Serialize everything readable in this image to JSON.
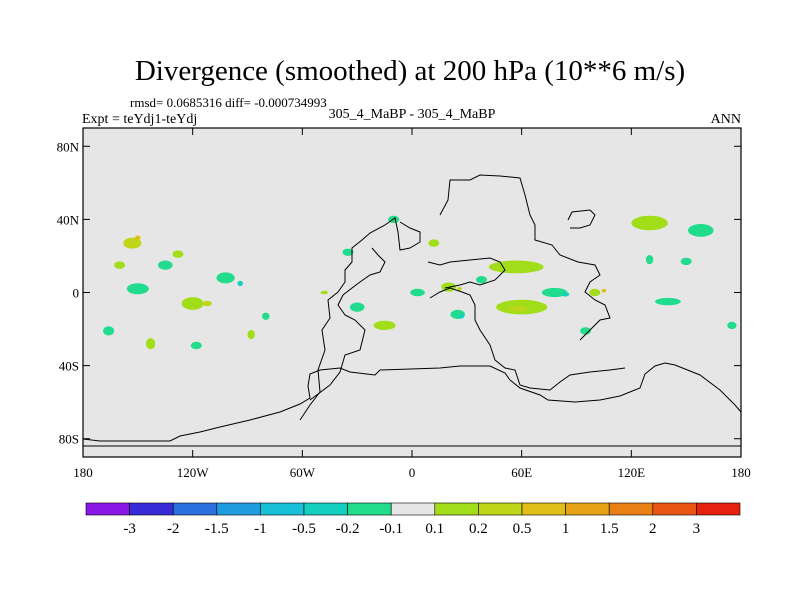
{
  "chart_data": {
    "type": "heatmap",
    "title": "Divergence (smoothed) at 200 hPa (10**6 m/s)",
    "stats_text": "rmsd= 0.0685316 diff= -0.000734993",
    "left_label": "Expt = teYdj1-teYdj",
    "center_label": "305_4_MaBP - 305_4_MaBP",
    "right_label": "ANN",
    "x_ticks": [
      {
        "lon": -180,
        "label": "180"
      },
      {
        "lon": -120,
        "label": "120W"
      },
      {
        "lon": -60,
        "label": "60W"
      },
      {
        "lon": 0,
        "label": "0"
      },
      {
        "lon": 60,
        "label": "60E"
      },
      {
        "lon": 120,
        "label": "120E"
      },
      {
        "lon": 180,
        "label": "180"
      }
    ],
    "y_ticks": [
      {
        "lat": 80,
        "label": "80N"
      },
      {
        "lat": 40,
        "label": "40N"
      },
      {
        "lat": 0,
        "label": "0"
      },
      {
        "lat": -40,
        "label": "40S"
      },
      {
        "lat": -80,
        "label": "80S"
      }
    ],
    "xlim": [
      -180,
      180
    ],
    "ylim": [
      -90,
      90
    ],
    "colorbar": {
      "colors": [
        "#8a17e6",
        "#3a2bd9",
        "#2b6fde",
        "#1d9ce0",
        "#17bfd9",
        "#14cfbf",
        "#20dc8c",
        "#e6e6e6",
        "#a2dd1a",
        "#bfd618",
        "#dfbf17",
        "#e7a316",
        "#ea7f14",
        "#e85512",
        "#e4220f"
      ],
      "labels": [
        "-3",
        "-2",
        "-1.5",
        "-1",
        "-0.5",
        "-0.2",
        "-0.1",
        "0.1",
        "0.2",
        "0.5",
        "1",
        "1.5",
        "2",
        "3"
      ]
    },
    "anomalies": [
      {
        "lon": -153,
        "lat": 27,
        "rx": 5,
        "ry": 3,
        "level": "0.2"
      },
      {
        "lon": -150,
        "lat": 30,
        "rx": 1.5,
        "ry": 1.2,
        "level": "0.5"
      },
      {
        "lon": -160,
        "lat": 15,
        "rx": 3,
        "ry": 2,
        "level": "0.1"
      },
      {
        "lon": -135,
        "lat": 15,
        "rx": 4,
        "ry": 2.5,
        "level": "-0.1"
      },
      {
        "lon": -128,
        "lat": 21,
        "rx": 3,
        "ry": 2,
        "level": "0.1"
      },
      {
        "lon": -102,
        "lat": 8,
        "rx": 5,
        "ry": 3,
        "level": "-0.1"
      },
      {
        "lon": -94,
        "lat": 5,
        "rx": 1.5,
        "ry": 1.5,
        "level": "-0.2"
      },
      {
        "lon": -150,
        "lat": 2,
        "rx": 6,
        "ry": 3,
        "level": "-0.1"
      },
      {
        "lon": -120,
        "lat": -6,
        "rx": 6,
        "ry": 3.5,
        "level": "0.1"
      },
      {
        "lon": -112,
        "lat": -6,
        "rx": 2.5,
        "ry": 1.5,
        "level": "0.2"
      },
      {
        "lon": -166,
        "lat": -21,
        "rx": 3,
        "ry": 2.5,
        "level": "-0.1"
      },
      {
        "lon": -143,
        "lat": -28,
        "rx": 2.5,
        "ry": 3,
        "level": "0.1"
      },
      {
        "lon": -118,
        "lat": -29,
        "rx": 3,
        "ry": 2,
        "level": "-0.1"
      },
      {
        "lon": -88,
        "lat": -23,
        "rx": 2,
        "ry": 2.5,
        "level": "0.1"
      },
      {
        "lon": -80,
        "lat": -13,
        "rx": 2,
        "ry": 2,
        "level": "-0.1"
      },
      {
        "lon": -35,
        "lat": 22,
        "rx": 3,
        "ry": 2,
        "level": "-0.1"
      },
      {
        "lon": -48,
        "lat": 0,
        "rx": 2,
        "ry": 1,
        "level": "0.1"
      },
      {
        "lon": -10,
        "lat": 40,
        "rx": 3,
        "ry": 2,
        "level": "-0.1"
      },
      {
        "lon": 12,
        "lat": 27,
        "rx": 3,
        "ry": 2,
        "level": "0.1"
      },
      {
        "lon": -30,
        "lat": -8,
        "rx": 4,
        "ry": 2.5,
        "level": "-0.1"
      },
      {
        "lon": -15,
        "lat": -18,
        "rx": 6,
        "ry": 2.5,
        "level": "0.1"
      },
      {
        "lon": 3,
        "lat": 0,
        "rx": 4,
        "ry": 2,
        "level": "-0.1"
      },
      {
        "lon": 20,
        "lat": 3,
        "rx": 4,
        "ry": 2.5,
        "level": "0.1"
      },
      {
        "lon": 26,
        "lat": 2,
        "rx": 1.2,
        "ry": 1,
        "level": "0.2"
      },
      {
        "lon": 38,
        "lat": 7,
        "rx": 3,
        "ry": 2,
        "level": "-0.1"
      },
      {
        "lon": 25,
        "lat": -12,
        "rx": 4,
        "ry": 2.5,
        "level": "-0.1"
      },
      {
        "lon": 27,
        "lat": -13,
        "rx": 1.5,
        "ry": 1.2,
        "level": "-0.2"
      },
      {
        "lon": 60,
        "lat": -8,
        "rx": 14,
        "ry": 4,
        "level": "0.1"
      },
      {
        "lon": 58,
        "lat": -9,
        "rx": 5,
        "ry": 1.5,
        "level": "0.2"
      },
      {
        "lon": 57,
        "lat": 14,
        "rx": 15,
        "ry": 3.5,
        "level": "0.1"
      },
      {
        "lon": 78,
        "lat": 0,
        "rx": 7,
        "ry": 2.5,
        "level": "-0.1"
      },
      {
        "lon": 84,
        "lat": -1,
        "rx": 2,
        "ry": 1.2,
        "level": "-0.2"
      },
      {
        "lon": 100,
        "lat": 0,
        "rx": 3,
        "ry": 2,
        "level": "0.1"
      },
      {
        "lon": 105,
        "lat": 1,
        "rx": 1.2,
        "ry": 1,
        "level": "0.5"
      },
      {
        "lon": 95,
        "lat": -21,
        "rx": 3,
        "ry": 2,
        "level": "-0.1"
      },
      {
        "lon": 130,
        "lat": 38,
        "rx": 10,
        "ry": 4,
        "level": "0.1"
      },
      {
        "lon": 158,
        "lat": 34,
        "rx": 7,
        "ry": 3.5,
        "level": "-0.1"
      },
      {
        "lon": 130,
        "lat": 18,
        "rx": 2,
        "ry": 2.5,
        "level": "-0.1"
      },
      {
        "lon": 150,
        "lat": 17,
        "rx": 3,
        "ry": 2,
        "level": "-0.1"
      },
      {
        "lon": 140,
        "lat": -5,
        "rx": 7,
        "ry": 2,
        "level": "-0.1"
      },
      {
        "lon": 175,
        "lat": -18,
        "rx": 2.5,
        "ry": 2,
        "level": "-0.1"
      }
    ]
  }
}
